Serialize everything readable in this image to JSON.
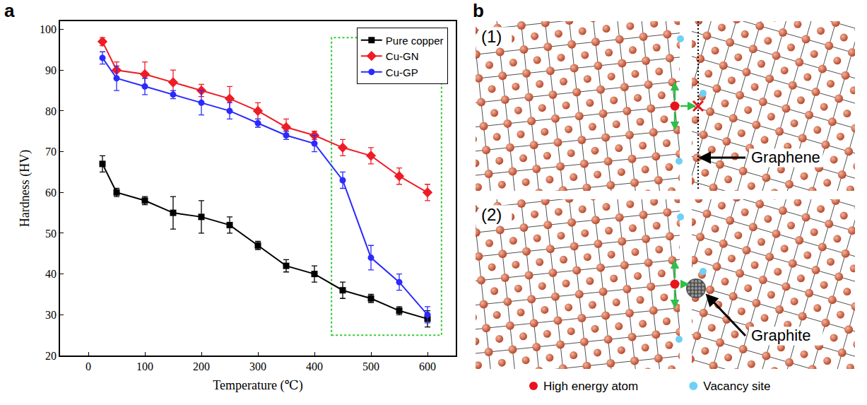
{
  "chart_panel_label": "a",
  "chart_data": {
    "type": "line",
    "x_label": "Temperature (℃)",
    "y_label": "Hardness (HV)",
    "x": [
      25,
      50,
      100,
      150,
      200,
      250,
      300,
      350,
      400,
      450,
      500,
      550,
      600
    ],
    "series": [
      {
        "name": "Pure copper",
        "color": "#000000",
        "marker": "square",
        "values": [
          67,
          60,
          58,
          55,
          54,
          52,
          47,
          42,
          40,
          36,
          34,
          31,
          29
        ],
        "errors": [
          2,
          1,
          1,
          4,
          4,
          2,
          1,
          1.5,
          2,
          2,
          1,
          1,
          2
        ]
      },
      {
        "name": "Cu-GN",
        "color": "#ee1c25",
        "marker": "diamond",
        "values": [
          97,
          90,
          89,
          87,
          85,
          83,
          80,
          76,
          74,
          71,
          69,
          64,
          60
        ],
        "errors": [
          1,
          2,
          3,
          3,
          1.5,
          3,
          2,
          2,
          1,
          2,
          2,
          2,
          2
        ]
      },
      {
        "name": "Cu-GP",
        "color": "#2a2aff",
        "marker": "circle",
        "values": [
          93,
          88,
          86,
          84,
          82,
          80,
          77,
          74,
          72,
          63,
          44,
          38,
          30
        ],
        "errors": [
          1.5,
          3,
          2,
          1,
          3,
          2,
          1,
          1,
          2,
          2,
          3,
          2,
          2
        ]
      }
    ],
    "xlim": [
      -50,
      650
    ],
    "xticks": [
      0,
      100,
      200,
      300,
      400,
      500,
      600
    ],
    "ylim": [
      20,
      102
    ],
    "yticks": [
      20,
      30,
      40,
      50,
      60,
      70,
      80,
      90,
      100
    ],
    "grid": false,
    "legend": "upper right"
  },
  "diagram": {
    "panel_label": "b",
    "panels": [
      {
        "label": "(1)",
        "interface": "Graphene"
      },
      {
        "label": "(2)",
        "interface": "Graphite"
      }
    ],
    "legend": [
      {
        "label": "High energy atom",
        "color": "#e8141c"
      },
      {
        "label": "Vacancy site",
        "color": "#6fd0f5"
      }
    ]
  }
}
